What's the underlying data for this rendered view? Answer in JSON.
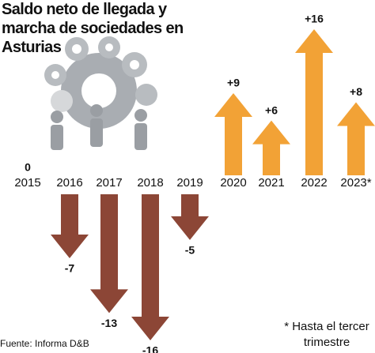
{
  "chart_data": {
    "type": "arrow",
    "title": "Saldo neto de llegada y marcha de sociedades en Asturias",
    "categories": [
      "2015",
      "2016",
      "2017",
      "2018",
      "2019",
      "2020",
      "2021",
      "2022",
      "2023*"
    ],
    "values": [
      0,
      -7,
      -13,
      -16,
      -5,
      9,
      6,
      16,
      8
    ],
    "value_labels": [
      "0",
      "-7",
      "-13",
      "-16",
      "-5",
      "+9",
      "+6",
      "+16",
      "+8"
    ],
    "positive_color": "#f2a236",
    "negative_color": "#8c4636",
    "note": "* Hasta el tercer trimestre",
    "source": "Fuente: Informa D&B"
  }
}
